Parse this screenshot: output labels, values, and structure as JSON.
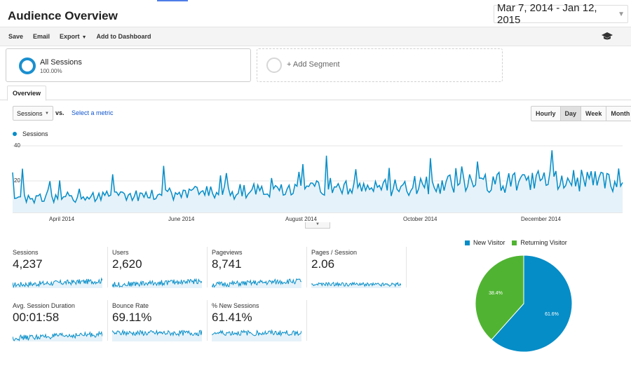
{
  "header": {
    "title": "Audience Overview",
    "date_range": "Mar 7, 2014 - Jan 12, 2015"
  },
  "toolbar": {
    "save": "Save",
    "email": "Email",
    "export": "Export",
    "add_to_dashboard": "Add to Dashboard"
  },
  "segments": {
    "active": {
      "name": "All Sessions",
      "percent": "100.00%"
    },
    "add": "+ Add Segment"
  },
  "tabs": {
    "overview": "Overview"
  },
  "chart_controls": {
    "metric": "Sessions",
    "vs": "vs.",
    "select_metric": "Select a metric",
    "granularity": [
      "Hourly",
      "Day",
      "Week",
      "Month"
    ],
    "active_granularity": "Day"
  },
  "chart_data": [
    {
      "type": "area",
      "series": [
        {
          "name": "Sessions",
          "color": "#058dc7"
        }
      ],
      "y_ticks": [
        "40",
        "20"
      ],
      "x_tick_labels": [
        "April 2014",
        "June 2014",
        "August 2014",
        "October 2014",
        "December 2014"
      ],
      "ylim": [
        0,
        45
      ],
      "grid": true
    },
    {
      "type": "pie",
      "slices": [
        {
          "name": "New Visitor",
          "value": 61.6,
          "label": "61.6%",
          "color": "#058dc7"
        },
        {
          "name": "Returning Visitor",
          "value": 38.4,
          "label": "38.4%",
          "color": "#50b432"
        }
      ],
      "legend": "top"
    }
  ],
  "metrics": [
    {
      "label": "Sessions",
      "value": "4,237"
    },
    {
      "label": "Users",
      "value": "2,620"
    },
    {
      "label": "Pageviews",
      "value": "8,741"
    },
    {
      "label": "Pages / Session",
      "value": "2.06"
    },
    {
      "label": "Avg. Session Duration",
      "value": "00:01:58"
    },
    {
      "label": "Bounce Rate",
      "value": "69.11%"
    },
    {
      "label": "% New Sessions",
      "value": "61.41%"
    }
  ],
  "colors": {
    "accent": "#058dc7",
    "area_fill": "#e6f2f9",
    "green": "#50b432"
  }
}
